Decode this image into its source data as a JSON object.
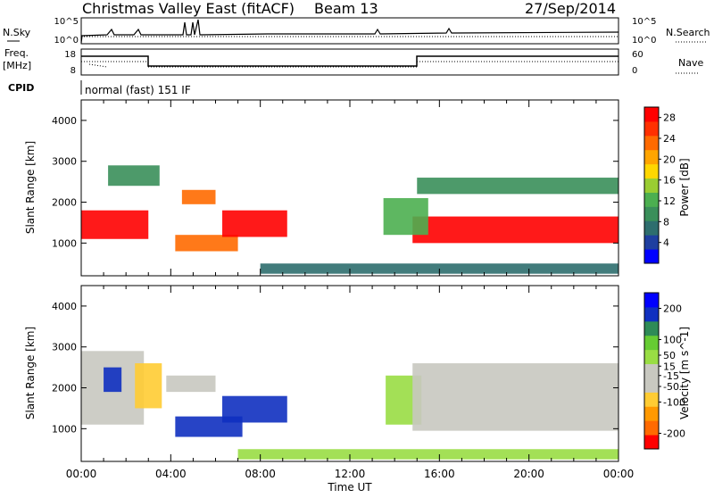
{
  "header": {
    "title": "Christmas Valley East (fitACF)",
    "beam": "Beam 13",
    "date": "27/Sep/2014"
  },
  "top_panels": {
    "nsky_label": "N.Sky",
    "nsky_ticks": [
      "10^5",
      "10^0"
    ],
    "nsearch_label": "N.Search",
    "nsearch_ticks": [
      "10^5",
      "10^0"
    ],
    "freq_label": "Freq.",
    "freq_unit": "[MHz]",
    "freq_ticks": [
      "18",
      "8"
    ],
    "nave_label": "Nave",
    "nave_ticks": [
      "60",
      "0"
    ],
    "cpid_label": "CPID",
    "cpid_text": "normal (fast) 151 IF"
  },
  "colors": {
    "power": [
      "#0000ff",
      "#1f3fa0",
      "#2e6e6e",
      "#3a8f5a",
      "#4caf50",
      "#9acd32",
      "#ffd700",
      "#ffa500",
      "#ff6a00",
      "#ff3000",
      "#ff0000"
    ],
    "velocity": [
      "#ff0000",
      "#ff6a00",
      "#ff9900",
      "#ffcc33",
      "#c8c8c0",
      "#c8c8c0",
      "#99dd44",
      "#66cc33",
      "#2e8b57",
      "#1030c0",
      "#0000ff"
    ]
  },
  "chart_data": [
    {
      "type": "heatmap",
      "title": "Power",
      "xlabel": "",
      "ylabel": "Slant Range [km]",
      "xlim": [
        0,
        24
      ],
      "ylim": [
        200,
        4500
      ],
      "x_ticks": [
        "00:00",
        "04:00",
        "08:00",
        "12:00",
        "16:00",
        "20:00",
        "00:00"
      ],
      "y_ticks": [
        1000,
        2000,
        3000,
        4000
      ],
      "colorbar_label": "Power [dB]",
      "colorbar_ticks": [
        4,
        8,
        12,
        16,
        20,
        24,
        28
      ],
      "colorbar_range": [
        0,
        30
      ],
      "regions": [
        {
          "x": [
            0.0,
            3.0
          ],
          "y": [
            1100,
            1800
          ],
          "value": 28
        },
        {
          "x": [
            1.2,
            3.5
          ],
          "y": [
            2400,
            2900
          ],
          "value": 10
        },
        {
          "x": [
            4.5,
            6.0
          ],
          "y": [
            1950,
            2300
          ],
          "value": 24
        },
        {
          "x": [
            4.2,
            7.0
          ],
          "y": [
            800,
            1200
          ],
          "value": 22
        },
        {
          "x": [
            6.3,
            9.2
          ],
          "y": [
            1150,
            1800
          ],
          "value": 28
        },
        {
          "x": [
            14.8,
            24.0
          ],
          "y": [
            1000,
            1650
          ],
          "value": 28
        },
        {
          "x": [
            13.5,
            15.5
          ],
          "y": [
            1200,
            2100
          ],
          "value": 12
        },
        {
          "x": [
            15.0,
            24.0
          ],
          "y": [
            2200,
            2600
          ],
          "value": 10
        },
        {
          "x": [
            8.0,
            24.0
          ],
          "y": [
            250,
            500
          ],
          "value": 6
        }
      ]
    },
    {
      "type": "heatmap",
      "title": "Velocity",
      "xlabel": "Time UT",
      "ylabel": "Slant Range [km]",
      "xlim": [
        0,
        24
      ],
      "ylim": [
        200,
        4500
      ],
      "x_ticks": [
        "00:00",
        "04:00",
        "08:00",
        "12:00",
        "16:00",
        "20:00",
        "00:00"
      ],
      "y_ticks": [
        1000,
        2000,
        3000,
        4000
      ],
      "colorbar_label": "Velocity [m s^-1]",
      "colorbar_ticks": [
        200,
        100,
        50,
        15,
        -15,
        -50,
        -100,
        -200
      ],
      "colorbar_range": [
        -250,
        250
      ],
      "regions": [
        {
          "x": [
            0.0,
            2.8
          ],
          "y": [
            1100,
            2900
          ],
          "value": 0
        },
        {
          "x": [
            1.0,
            1.8
          ],
          "y": [
            1900,
            2500
          ],
          "value": 200
        },
        {
          "x": [
            2.4,
            3.6
          ],
          "y": [
            1500,
            2600
          ],
          "value": -80
        },
        {
          "x": [
            3.8,
            6.0
          ],
          "y": [
            1900,
            2300
          ],
          "value": -60
        },
        {
          "x": [
            4.2,
            7.2
          ],
          "y": [
            800,
            1300
          ],
          "value": 200
        },
        {
          "x": [
            6.3,
            9.2
          ],
          "y": [
            1150,
            1800
          ],
          "value": 200
        },
        {
          "x": [
            13.6,
            15.2
          ],
          "y": [
            1100,
            2300
          ],
          "value": 40
        },
        {
          "x": [
            14.8,
            24.0
          ],
          "y": [
            950,
            2600
          ],
          "value": 0
        },
        {
          "x": [
            7.0,
            24.0
          ],
          "y": [
            250,
            500
          ],
          "value": 40
        }
      ]
    }
  ]
}
